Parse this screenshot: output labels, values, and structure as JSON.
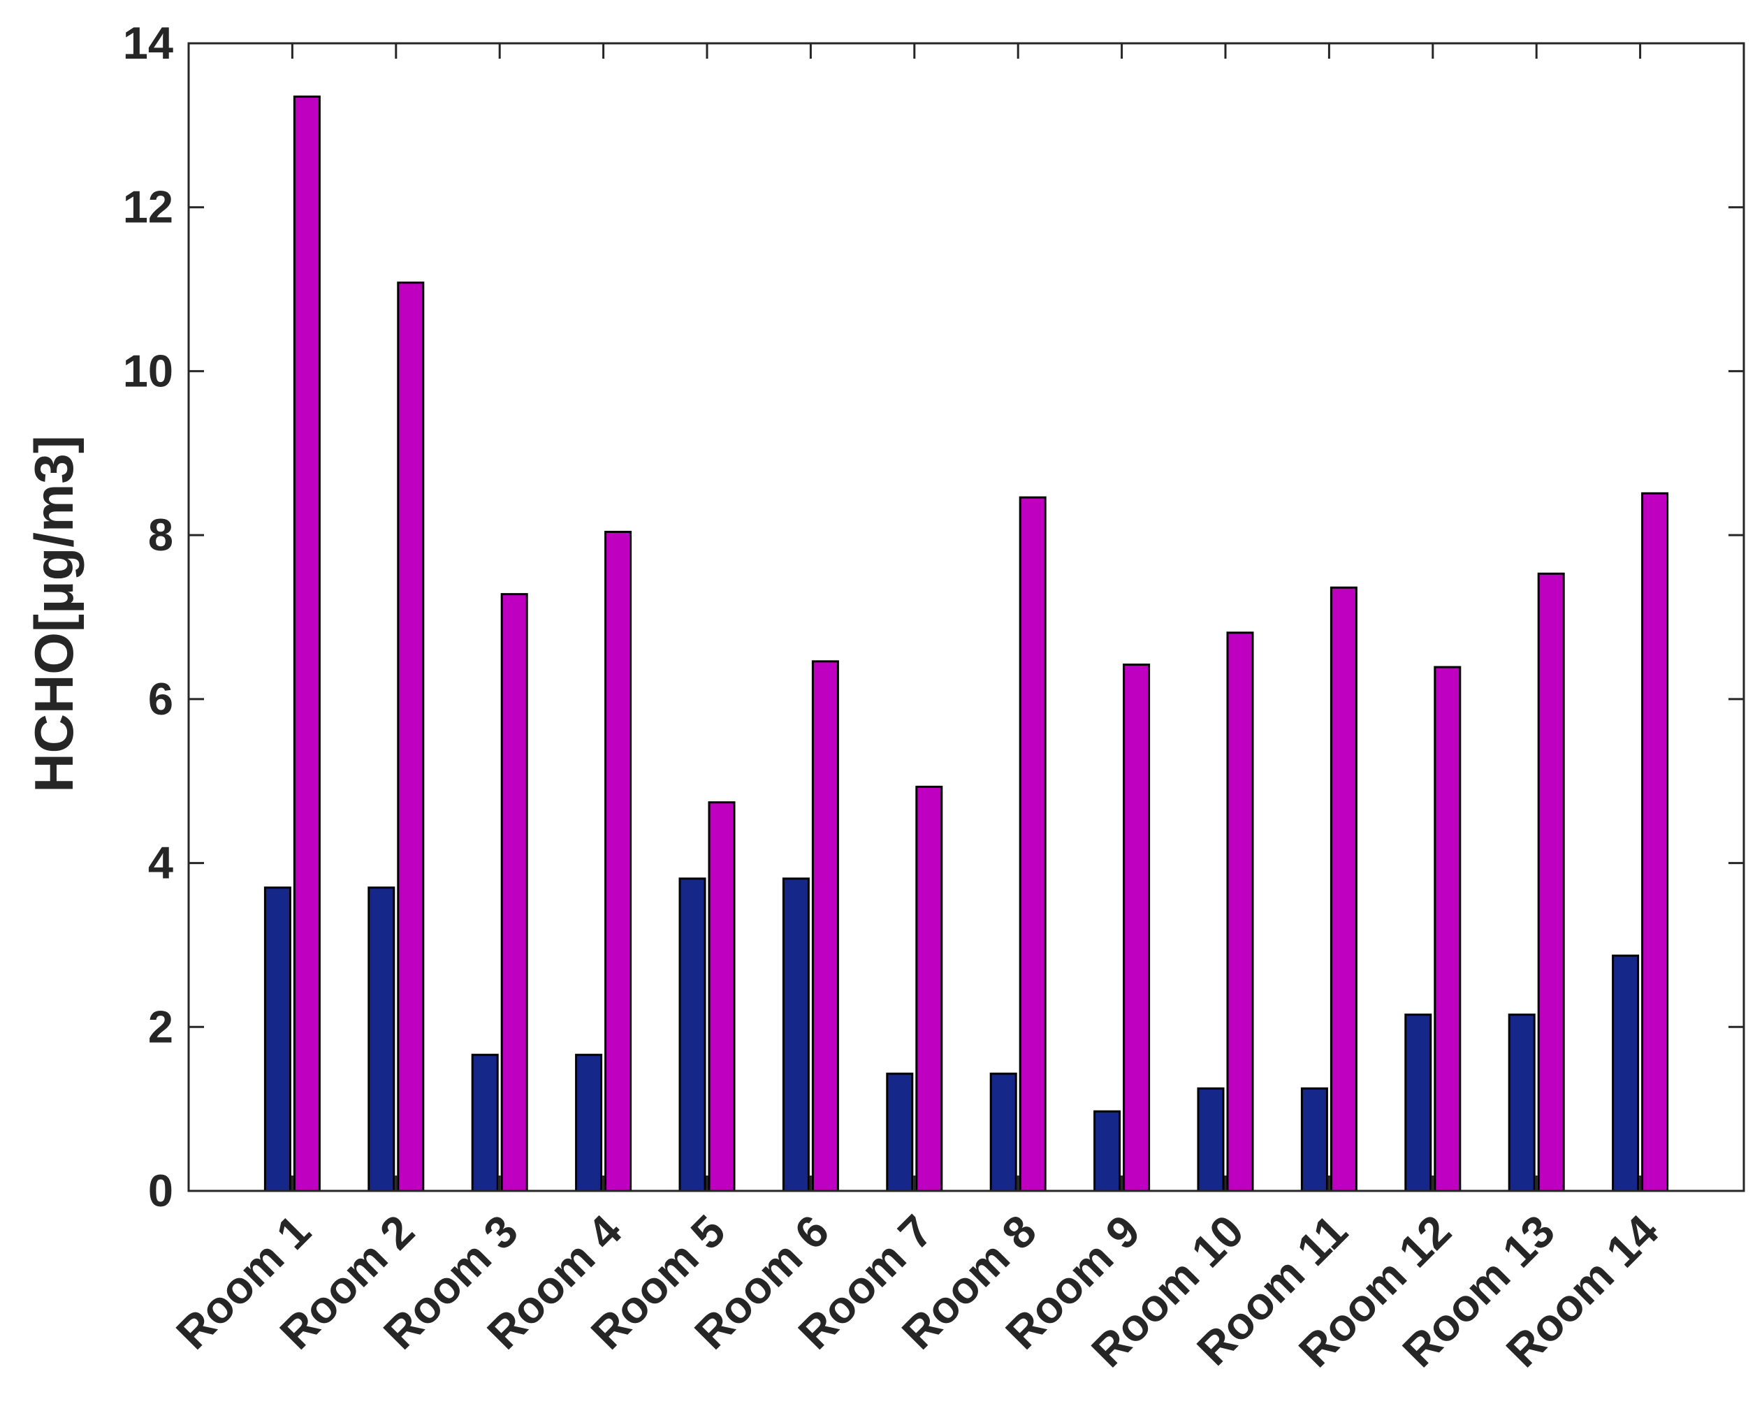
{
  "chart_data": {
    "type": "bar",
    "y_label": "HCHO[μg/m3]",
    "categories": [
      "Room 1",
      "Room 2",
      "Room 3",
      "Room 4",
      "Room 5",
      "Room 6",
      "Room 7",
      "Room 8",
      "Room 9",
      "Room 10",
      "Room 11",
      "Room 12",
      "Room 13",
      "Room 14"
    ],
    "series": [
      {
        "color": "#15288a",
        "values": [
          3.7,
          3.7,
          1.66,
          1.66,
          3.81,
          3.81,
          1.43,
          1.43,
          0.97,
          1.25,
          1.25,
          2.15,
          2.15,
          2.87
        ]
      },
      {
        "color": "#c000c0",
        "values": [
          13.35,
          11.08,
          7.28,
          8.04,
          4.74,
          6.46,
          4.93,
          8.46,
          6.42,
          6.81,
          7.36,
          6.39,
          7.53,
          8.51
        ]
      }
    ],
    "ylim": [
      0,
      14
    ],
    "yticks": [
      0,
      2,
      4,
      6,
      8,
      10,
      12,
      14
    ],
    "grid": false
  }
}
